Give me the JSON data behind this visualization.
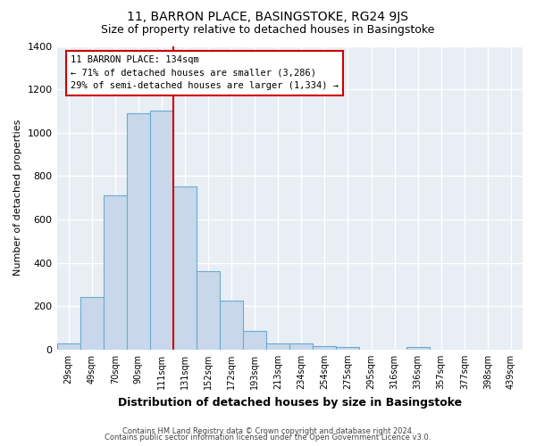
{
  "title": "11, BARRON PLACE, BASINGSTOKE, RG24 9JS",
  "subtitle": "Size of property relative to detached houses in Basingstoke",
  "xlabel": "Distribution of detached houses by size in Basingstoke",
  "ylabel": "Number of detached properties",
  "bar_labels": [
    "29sqm",
    "49sqm",
    "70sqm",
    "90sqm",
    "111sqm",
    "131sqm",
    "152sqm",
    "172sqm",
    "193sqm",
    "213sqm",
    "234sqm",
    "254sqm",
    "275sqm",
    "295sqm",
    "316sqm",
    "336sqm",
    "357sqm",
    "377sqm",
    "398sqm",
    "439sqm"
  ],
  "bar_heights": [
    30,
    240,
    710,
    1090,
    1100,
    750,
    360,
    225,
    85,
    30,
    30,
    15,
    10,
    0,
    0,
    10,
    0,
    0,
    0,
    0
  ],
  "bar_color": "#c8d8ea",
  "bar_edge_color": "#6aaad4",
  "vline_color": "#cc0000",
  "annotation_title": "11 BARRON PLACE: 134sqm",
  "annotation_line1": "← 71% of detached houses are smaller (3,286)",
  "annotation_line2": "29% of semi-detached houses are larger (1,334) →",
  "annotation_box_color": "#ffffff",
  "annotation_box_edge": "#cc0000",
  "ylim": [
    0,
    1400
  ],
  "yticks": [
    0,
    200,
    400,
    600,
    800,
    1000,
    1200,
    1400
  ],
  "footer1": "Contains HM Land Registry data © Crown copyright and database right 2024.",
  "footer2": "Contains public sector information licensed under the Open Government Licence v3.0.",
  "bg_color": "#ffffff",
  "plot_bg_color": "#e8eef4",
  "grid_color": "#ffffff",
  "title_fontsize": 10,
  "subtitle_fontsize": 9
}
